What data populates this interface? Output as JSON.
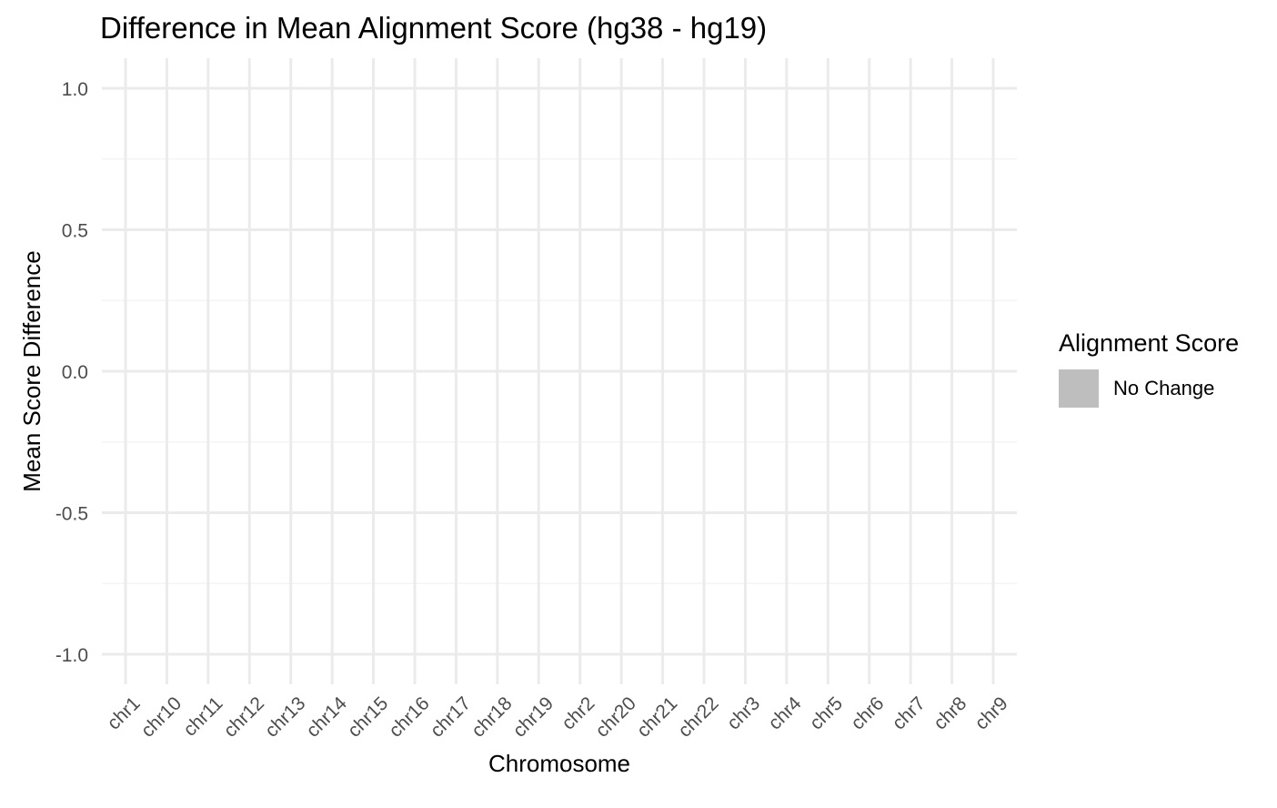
{
  "chart_data": {
    "type": "bar",
    "title": "Difference in Mean Alignment Score (hg38 - hg19)",
    "xlabel": "Chromosome",
    "ylabel": "Mean Score Difference",
    "categories": [
      "chr1",
      "chr10",
      "chr11",
      "chr12",
      "chr13",
      "chr14",
      "chr15",
      "chr16",
      "chr17",
      "chr18",
      "chr19",
      "chr2",
      "chr20",
      "chr21",
      "chr22",
      "chr3",
      "chr4",
      "chr5",
      "chr6",
      "chr7",
      "chr8",
      "chr9"
    ],
    "series": [
      {
        "name": "No Change",
        "values": [
          0,
          0,
          0,
          0,
          0,
          0,
          0,
          0,
          0,
          0,
          0,
          0,
          0,
          0,
          0,
          0,
          0,
          0,
          0,
          0,
          0,
          0
        ]
      }
    ],
    "ylim": [
      -1.1,
      1.1
    ],
    "yticks": [
      -1.0,
      -0.5,
      0.0,
      0.5,
      1.0
    ],
    "ytick_labels": [
      "-1.0",
      "-0.5",
      "0.0",
      "0.5",
      "1.0"
    ],
    "grid": true,
    "legend": {
      "title": "Alignment Score",
      "position": "right",
      "items": [
        {
          "label": "No Change",
          "color": "#bebebe"
        }
      ]
    }
  },
  "colors": {
    "grid_major": "#ebebeb",
    "grid_minor": "#f4f4f4",
    "tick_label": "#4d4d4d",
    "text": "#000000",
    "no_change": "#bebebe"
  }
}
